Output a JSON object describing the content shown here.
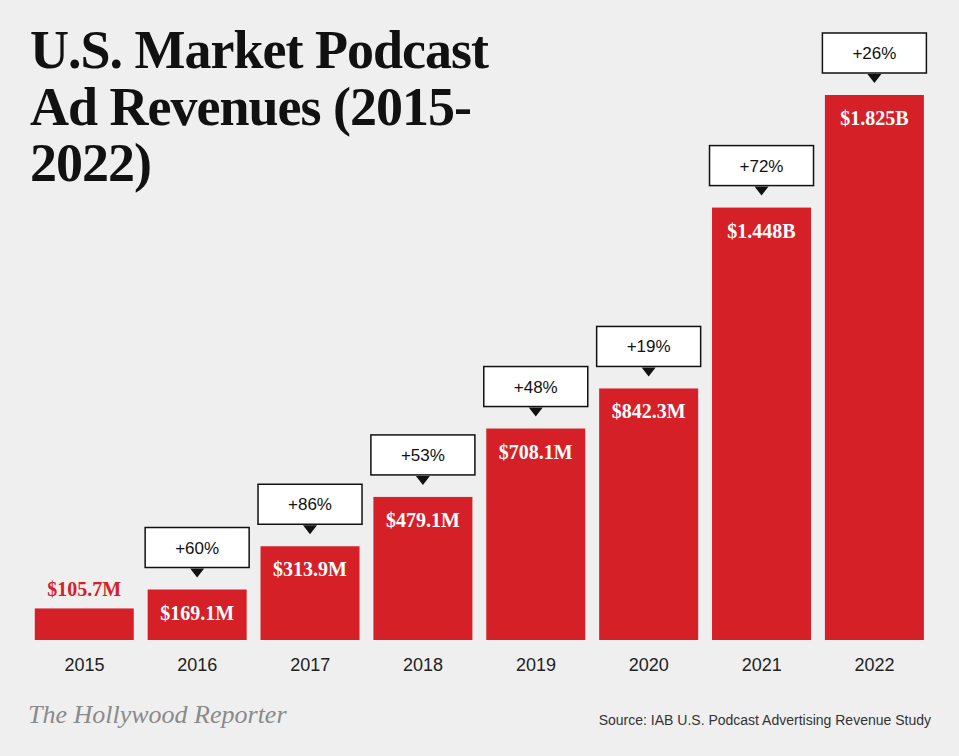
{
  "chart_data": {
    "type": "bar",
    "title": "U.S. Market Podcast Ad Revenues (2015-2022)",
    "categories": [
      "2015",
      "2016",
      "2017",
      "2018",
      "2019",
      "2020",
      "2021",
      "2022"
    ],
    "values": [
      105.7,
      169.1,
      313.9,
      479.1,
      708.1,
      842.3,
      1448,
      1825
    ],
    "value_labels": [
      "$105.7M",
      "$169.1M",
      "$313.9M",
      "$479.1M",
      "$708.1M",
      "$842.3M",
      "$1.448B",
      "$1.825B"
    ],
    "data_labels": true,
    "color": "#d62027",
    "grid": false,
    "tick_labels": "x",
    "annotations": [
      {
        "category": "2016",
        "text": "+60%"
      },
      {
        "category": "2017",
        "text": "+86%"
      },
      {
        "category": "2018",
        "text": "+53%"
      },
      {
        "category": "2019",
        "text": "+48%"
      },
      {
        "category": "2020",
        "text": "+19%"
      },
      {
        "category": "2021",
        "text": "+72%"
      },
      {
        "category": "2022",
        "text": "+26%"
      }
    ],
    "source": "Source: IAB U.S. Podcast Advertising Revenue Study",
    "logo": "The Hollywood Reporter"
  }
}
